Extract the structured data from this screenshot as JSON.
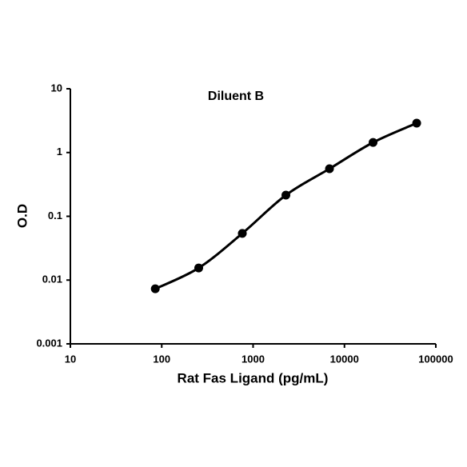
{
  "chart_data": {
    "type": "line",
    "title": "Diluent B",
    "x_label": "Rat Fas Ligand (pg/mL)",
    "y_label": "O.D",
    "x": [
      85,
      254,
      762,
      2286,
      6859,
      20576,
      61728
    ],
    "series": [
      {
        "color": "#000000",
        "values": [
          0.0073,
          0.0155,
          0.054,
          0.215,
          0.557,
          1.44,
          2.89
        ]
      }
    ],
    "xlog": true,
    "ylog": true,
    "xlim": [
      10,
      100000
    ],
    "ylim": [
      0.001,
      10
    ],
    "xticks": [
      10,
      100,
      1000,
      10000,
      100000
    ],
    "yticks": [
      0.001,
      0.01,
      0.1,
      1,
      10
    ],
    "grid": false
  }
}
